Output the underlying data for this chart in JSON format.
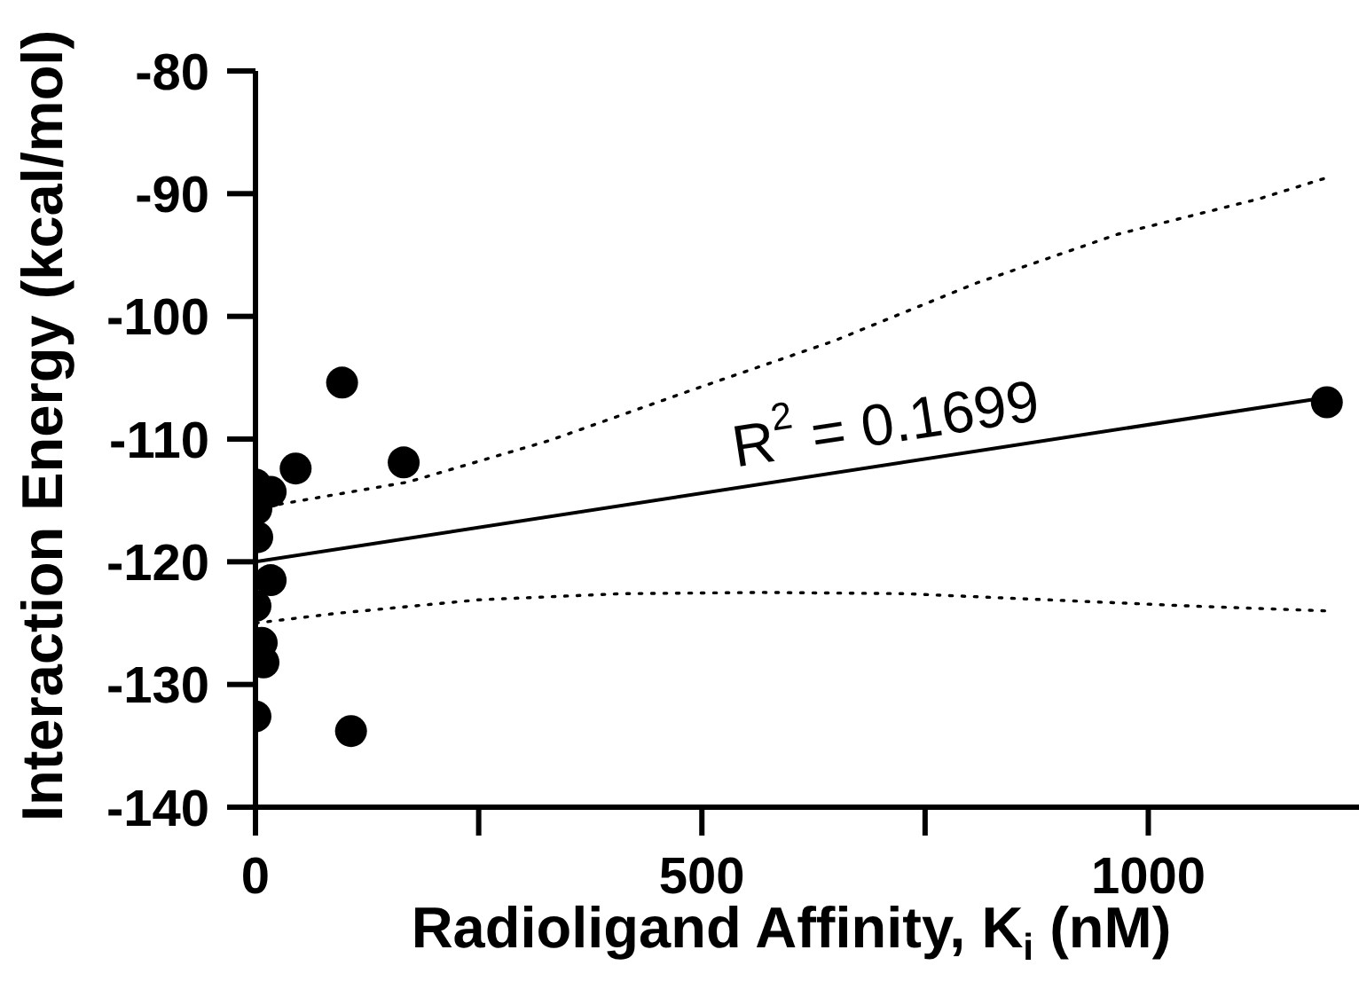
{
  "chart_data": {
    "type": "scatter",
    "xlabel": "Radioligand Affinity, K$_{i}$ (nM)",
    "ylabel": "Interaction Energy (kcal/mol)",
    "xlim": [
      0,
      1236
    ],
    "xticks": [
      0,
      {
        "value": 250,
        "label": null
      },
      500,
      {
        "value": 750,
        "label": null
      },
      1000
    ],
    "ylim": [
      -140,
      -80
    ],
    "yticks": [
      -80,
      -90,
      -100,
      -110,
      -120,
      -130,
      -140
    ],
    "annotations": [
      "R$^{2}$ = 0.1699"
    ],
    "series": [
      {
        "color": "#000000",
        "marker": "circle",
        "x": [
          0,
          0,
          0,
          1,
          2,
          7,
          9,
          17,
          17,
          45,
          97,
          107,
          166,
          1200
        ],
        "values": [
          -132.6,
          -113.7,
          -123.6,
          -115.7,
          -118.0,
          -126.6,
          -128.2,
          -114.3,
          -121.5,
          -112.4,
          -105.4,
          -133.8,
          -111.9,
          -107.0
        ]
      },
      {
        "type": "line",
        "color": "#000000",
        "line_style": "solid",
        "x": [
          0,
          1200
        ],
        "values": [
          -120.0,
          -106.6
        ]
      },
      {
        "type": "line",
        "color": "#000000",
        "line_style": "dotted",
        "x": [
          0,
          12,
          171,
          330,
          489,
          648,
          807,
          966,
          1125,
          1200
        ],
        "values": [
          -115.8,
          -115.5,
          -113.5,
          -110.1,
          -106.0,
          -102.0,
          -97.3,
          -93.3,
          -90.4,
          -88.7
        ]
      },
      {
        "type": "line",
        "color": "#000000",
        "line_style": "dotted",
        "x": [
          0,
          91,
          250,
          410,
          569,
          728,
          887,
          1046,
          1200
        ],
        "values": [
          -125.0,
          -124.2,
          -123.1,
          -122.6,
          -122.5,
          -122.6,
          -123.1,
          -123.6,
          -124.0
        ]
      }
    ]
  }
}
